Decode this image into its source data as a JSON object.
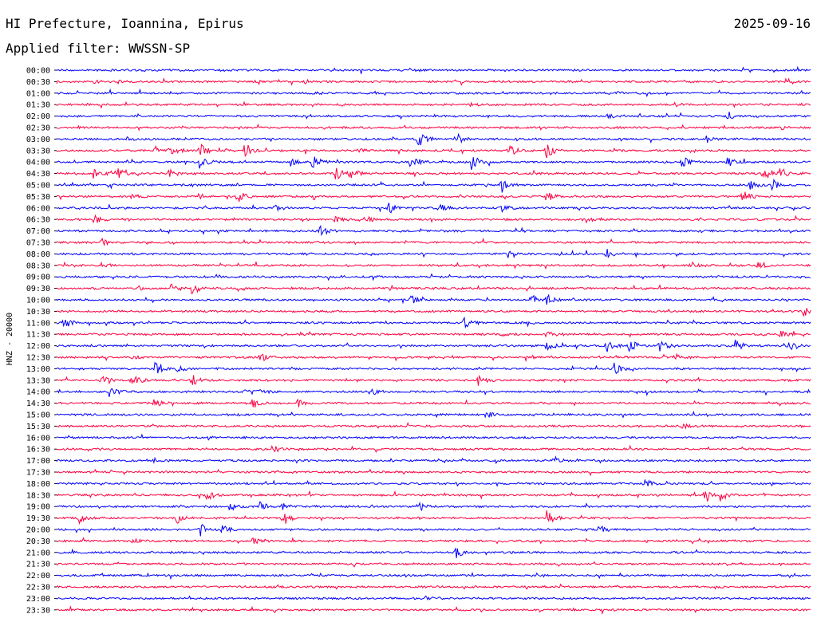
{
  "header": {
    "title": "HI Prefecture, Ioannina, Epirus",
    "date": "2025-09-16",
    "filter": "Applied filter: WWSSN-SP"
  },
  "chart_data": {
    "type": "helicorder",
    "ylabel": "HNZ - 20000",
    "colors": [
      "#0000ff",
      "#ff0040"
    ],
    "rows": [
      {
        "label": "00:00",
        "events": [
          {
            "t": 0.47,
            "a": 2
          }
        ]
      },
      {
        "label": "00:30",
        "events": [
          {
            "t": 0.05,
            "a": 2
          },
          {
            "t": 0.08,
            "a": 2
          },
          {
            "t": 0.33,
            "a": 2
          }
        ]
      },
      {
        "label": "01:00",
        "events": [
          {
            "t": 0.34,
            "a": 2
          },
          {
            "t": 0.74,
            "a": 2
          }
        ]
      },
      {
        "label": "01:30",
        "events": [
          {
            "t": 0.55,
            "a": 2
          },
          {
            "t": 0.82,
            "a": 2
          }
        ]
      },
      {
        "label": "02:00",
        "events": [
          {
            "t": 0.73,
            "a": 6
          },
          {
            "t": 0.89,
            "a": 6
          }
        ]
      },
      {
        "label": "02:30",
        "events": [
          {
            "t": 0.96,
            "a": 3
          }
        ]
      },
      {
        "label": "03:00",
        "events": [
          {
            "t": 0.09,
            "a": 3
          },
          {
            "t": 0.48,
            "a": 11
          },
          {
            "t": 0.53,
            "a": 8
          },
          {
            "t": 0.86,
            "a": 5
          }
        ]
      },
      {
        "label": "03:30",
        "events": [
          {
            "t": 0.13,
            "a": 5
          },
          {
            "t": 0.15,
            "a": 9
          },
          {
            "t": 0.19,
            "a": 10
          },
          {
            "t": 0.25,
            "a": 10
          },
          {
            "t": 0.4,
            "a": 4
          },
          {
            "t": 0.6,
            "a": 8
          },
          {
            "t": 0.65,
            "a": 9
          }
        ]
      },
      {
        "label": "04:00",
        "events": [
          {
            "t": 0.19,
            "a": 9
          },
          {
            "t": 0.31,
            "a": 7
          },
          {
            "t": 0.34,
            "a": 9
          },
          {
            "t": 0.47,
            "a": 11
          },
          {
            "t": 0.55,
            "a": 11
          },
          {
            "t": 0.83,
            "a": 7
          },
          {
            "t": 0.89,
            "a": 7
          }
        ]
      },
      {
        "label": "04:30",
        "events": [
          {
            "t": 0.05,
            "a": 6
          },
          {
            "t": 0.08,
            "a": 8
          },
          {
            "t": 0.15,
            "a": 5
          },
          {
            "t": 0.37,
            "a": 11
          },
          {
            "t": 0.39,
            "a": 9
          },
          {
            "t": 0.94,
            "a": 9
          },
          {
            "t": 0.96,
            "a": 8
          }
        ]
      },
      {
        "label": "05:00",
        "events": [
          {
            "t": 0.59,
            "a": 7
          },
          {
            "t": 0.92,
            "a": 6
          },
          {
            "t": 0.95,
            "a": 9
          }
        ]
      },
      {
        "label": "05:30",
        "events": [
          {
            "t": 0.1,
            "a": 4
          },
          {
            "t": 0.24,
            "a": 9
          },
          {
            "t": 0.65,
            "a": 7
          },
          {
            "t": 0.91,
            "a": 8
          }
        ]
      },
      {
        "label": "06:00",
        "events": [
          {
            "t": 0.29,
            "a": 5
          },
          {
            "t": 0.44,
            "a": 8
          },
          {
            "t": 0.51,
            "a": 6
          },
          {
            "t": 0.59,
            "a": 6
          }
        ]
      },
      {
        "label": "06:30",
        "events": [
          {
            "t": 0.05,
            "a": 6
          },
          {
            "t": 0.37,
            "a": 5
          },
          {
            "t": 0.41,
            "a": 5
          },
          {
            "t": 0.7,
            "a": 4
          }
        ]
      },
      {
        "label": "07:00",
        "events": [
          {
            "t": 0.35,
            "a": 7
          }
        ]
      },
      {
        "label": "07:30",
        "events": [
          {
            "t": 0.06,
            "a": 4
          }
        ]
      },
      {
        "label": "08:00",
        "events": [
          {
            "t": 0.6,
            "a": 7
          },
          {
            "t": 0.73,
            "a": 6
          }
        ]
      },
      {
        "label": "08:30",
        "events": [
          {
            "t": 0.06,
            "a": 3
          },
          {
            "t": 0.84,
            "a": 5
          },
          {
            "t": 0.93,
            "a": 5
          }
        ]
      },
      {
        "label": "09:00",
        "events": [
          {
            "t": 0.37,
            "a": 3
          }
        ]
      },
      {
        "label": "09:30",
        "events": [
          {
            "t": 0.11,
            "a": 3
          },
          {
            "t": 0.15,
            "a": 8
          },
          {
            "t": 0.18,
            "a": 9
          }
        ]
      },
      {
        "label": "10:00",
        "events": [
          {
            "t": 0.47,
            "a": 6
          },
          {
            "t": 0.63,
            "a": 7
          },
          {
            "t": 0.65,
            "a": 7
          }
        ]
      },
      {
        "label": "10:30",
        "events": [
          {
            "t": 0.99,
            "a": 8
          }
        ]
      },
      {
        "label": "11:00",
        "events": [
          {
            "t": 0.01,
            "a": 8
          },
          {
            "t": 0.54,
            "a": 8
          }
        ]
      },
      {
        "label": "11:30",
        "events": [
          {
            "t": 0.59,
            "a": 3
          },
          {
            "t": 0.65,
            "a": 4
          },
          {
            "t": 0.96,
            "a": 5
          }
        ]
      },
      {
        "label": "12:00",
        "events": [
          {
            "t": 0.65,
            "a": 7
          },
          {
            "t": 0.73,
            "a": 9
          },
          {
            "t": 0.76,
            "a": 10
          },
          {
            "t": 0.8,
            "a": 9
          },
          {
            "t": 0.9,
            "a": 8
          },
          {
            "t": 0.97,
            "a": 7
          }
        ]
      },
      {
        "label": "12:30",
        "events": [
          {
            "t": 0.1,
            "a": 3
          },
          {
            "t": 0.27,
            "a": 6
          },
          {
            "t": 0.82,
            "a": 4
          }
        ]
      },
      {
        "label": "13:00",
        "events": [
          {
            "t": 0.13,
            "a": 8
          },
          {
            "t": 0.16,
            "a": 4
          },
          {
            "t": 0.74,
            "a": 9
          }
        ]
      },
      {
        "label": "13:30",
        "events": [
          {
            "t": 0.06,
            "a": 5
          },
          {
            "t": 0.1,
            "a": 9
          },
          {
            "t": 0.18,
            "a": 8
          },
          {
            "t": 0.56,
            "a": 8
          }
        ]
      },
      {
        "label": "14:00",
        "events": [
          {
            "t": 0.07,
            "a": 8
          },
          {
            "t": 0.25,
            "a": 4
          },
          {
            "t": 0.27,
            "a": 4
          },
          {
            "t": 0.42,
            "a": 4
          }
        ]
      },
      {
        "label": "14:30",
        "events": [
          {
            "t": 0.13,
            "a": 6
          },
          {
            "t": 0.26,
            "a": 7
          },
          {
            "t": 0.32,
            "a": 5
          }
        ]
      },
      {
        "label": "15:00",
        "events": [
          {
            "t": 0.57,
            "a": 4
          }
        ]
      },
      {
        "label": "15:30",
        "events": [
          {
            "t": 0.83,
            "a": 3
          }
        ]
      },
      {
        "label": "16:00",
        "events": []
      },
      {
        "label": "16:30",
        "events": [
          {
            "t": 0.29,
            "a": 3
          }
        ]
      },
      {
        "label": "17:00",
        "events": [
          {
            "t": 0.13,
            "a": 4
          },
          {
            "t": 0.66,
            "a": 3
          }
        ]
      },
      {
        "label": "17:30",
        "events": []
      },
      {
        "label": "18:00",
        "events": [
          {
            "t": 0.78,
            "a": 6
          }
        ]
      },
      {
        "label": "18:30",
        "events": [
          {
            "t": 0.2,
            "a": 7
          },
          {
            "t": 0.86,
            "a": 7
          },
          {
            "t": 0.88,
            "a": 8
          }
        ]
      },
      {
        "label": "19:00",
        "events": [
          {
            "t": 0.23,
            "a": 5
          },
          {
            "t": 0.27,
            "a": 6
          },
          {
            "t": 0.3,
            "a": 4
          },
          {
            "t": 0.48,
            "a": 7
          }
        ]
      },
      {
        "label": "19:30",
        "events": [
          {
            "t": 0.03,
            "a": 6
          },
          {
            "t": 0.16,
            "a": 6
          },
          {
            "t": 0.3,
            "a": 7
          },
          {
            "t": 0.65,
            "a": 9
          }
        ]
      },
      {
        "label": "20:00",
        "events": [
          {
            "t": 0.19,
            "a": 9
          },
          {
            "t": 0.22,
            "a": 7
          },
          {
            "t": 0.72,
            "a": 6
          }
        ]
      },
      {
        "label": "20:30",
        "events": [
          {
            "t": 0.1,
            "a": 3
          },
          {
            "t": 0.26,
            "a": 4
          }
        ]
      },
      {
        "label": "21:00",
        "events": [
          {
            "t": 0.53,
            "a": 7
          }
        ]
      },
      {
        "label": "21:30",
        "events": []
      },
      {
        "label": "22:00",
        "events": []
      },
      {
        "label": "22:30",
        "events": []
      },
      {
        "label": "23:00",
        "events": [
          {
            "t": 0.49,
            "a": 3
          }
        ]
      },
      {
        "label": "23:30",
        "events": []
      }
    ]
  }
}
